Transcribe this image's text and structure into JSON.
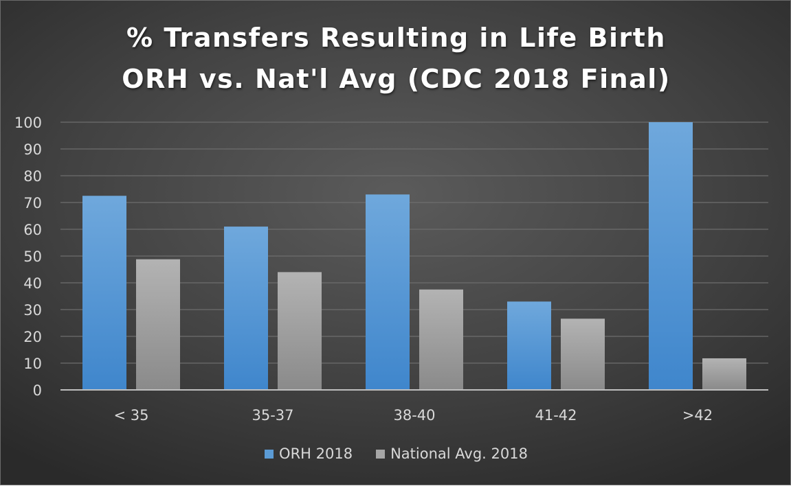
{
  "chart_data": {
    "type": "bar",
    "title": "% Transfers Resulting in Life Birth",
    "subtitle": "ORH vs. Nat'l Avg (CDC 2018 Final)",
    "xlabel": "",
    "ylabel": "",
    "categories": [
      "< 35",
      "35-37",
      "38-40",
      "41-42",
      ">42"
    ],
    "series": [
      {
        "name": "ORH 2018",
        "color": "#5b9bd5",
        "values": [
          72.5,
          61,
          73,
          33,
          100
        ]
      },
      {
        "name": "National Avg. 2018",
        "color": "#a6a6a6",
        "values": [
          48.8,
          44,
          37.5,
          26.6,
          11.8
        ]
      }
    ],
    "ylim": [
      0,
      100
    ],
    "yticks": [
      0,
      10,
      20,
      30,
      40,
      50,
      60,
      70,
      80,
      90,
      100
    ],
    "grid": true,
    "legend_position": "bottom"
  }
}
